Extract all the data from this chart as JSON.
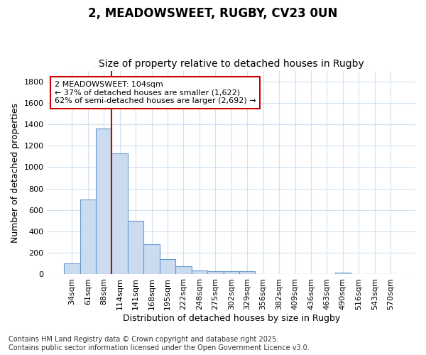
{
  "title_line1": "2, MEADOWSWEET, RUGBY, CV23 0UN",
  "title_line2": "Size of property relative to detached houses in Rugby",
  "xlabel": "Distribution of detached houses by size in Rugby",
  "ylabel": "Number of detached properties",
  "bar_color": "#ccdcf0",
  "bar_edge_color": "#6699cc",
  "bg_color": "#ffffff",
  "grid_color": "#d0e0f0",
  "categories": [
    "34sqm",
    "61sqm",
    "88sqm",
    "114sqm",
    "141sqm",
    "168sqm",
    "195sqm",
    "222sqm",
    "248sqm",
    "275sqm",
    "302sqm",
    "329sqm",
    "356sqm",
    "382sqm",
    "409sqm",
    "436sqm",
    "463sqm",
    "490sqm",
    "516sqm",
    "543sqm",
    "570sqm"
  ],
  "values": [
    100,
    700,
    1360,
    1130,
    500,
    280,
    145,
    75,
    35,
    30,
    30,
    30,
    0,
    0,
    0,
    0,
    0,
    15,
    0,
    0,
    0
  ],
  "ylim": [
    0,
    1900
  ],
  "yticks": [
    0,
    200,
    400,
    600,
    800,
    1000,
    1200,
    1400,
    1600,
    1800
  ],
  "vline_x_idx": 3,
  "vline_color": "#cc0000",
  "annotation_text": "2 MEADOWSWEET: 104sqm\n← 37% of detached houses are smaller (1,622)\n62% of semi-detached houses are larger (2,692) →",
  "annotation_box_color": "#ffffff",
  "annotation_edge_color": "#cc0000",
  "footer_line1": "Contains HM Land Registry data © Crown copyright and database right 2025.",
  "footer_line2": "Contains public sector information licensed under the Open Government Licence v3.0.",
  "title_fontsize": 12,
  "subtitle_fontsize": 10,
  "axis_label_fontsize": 9,
  "tick_fontsize": 8,
  "annotation_fontsize": 8,
  "footer_fontsize": 7
}
